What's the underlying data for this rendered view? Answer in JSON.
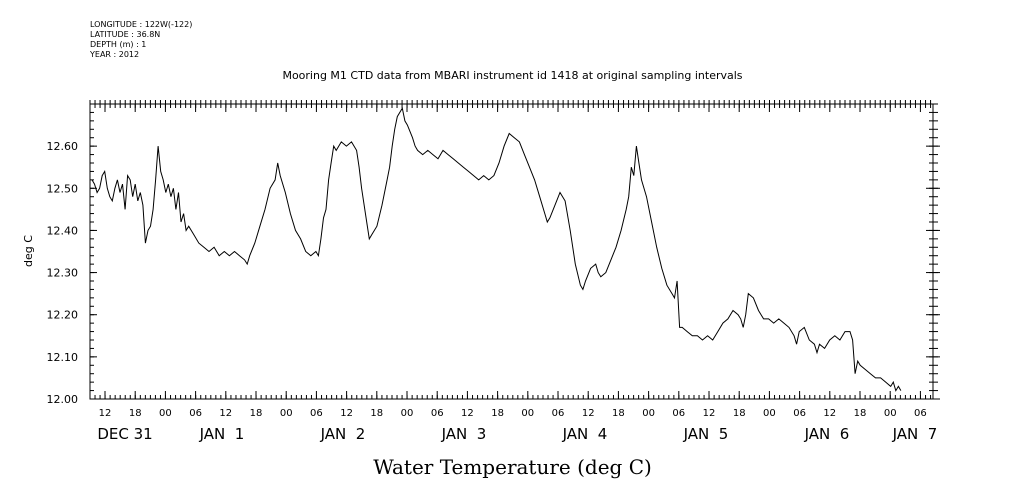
{
  "meta": {
    "longitude": "LONGITUDE : 122W(-122)",
    "latitude": "LATITUDE : 36.8N",
    "depth": "DEPTH (m) : 1",
    "year": "YEAR : 2012"
  },
  "chart_data": {
    "type": "line",
    "title": "Mooring M1 CTD data from MBARI instrument id 1418 at original sampling intervals",
    "xlabel": "Water Temperature (deg C)",
    "ylabel": "deg C",
    "ylim": [
      12.0,
      12.7
    ],
    "xlim_hours": [
      0,
      168
    ],
    "y_ticks": [
      "12.00",
      "12.10",
      "12.20",
      "12.30",
      "12.40",
      "12.50",
      "12.60"
    ],
    "x_hour_ticks": [
      "12",
      "18",
      "00",
      "06",
      "12",
      "18",
      "00",
      "06",
      "12",
      "18",
      "00",
      "06",
      "12",
      "18",
      "00",
      "06",
      "12",
      "18",
      "00",
      "06",
      "12",
      "18",
      "00",
      "06",
      "12",
      "18",
      "00",
      "06"
    ],
    "x_day_labels": [
      "DEC 31",
      "JAN  1",
      "JAN  2",
      "JAN  3",
      "JAN  4",
      "JAN  5",
      "JAN  6",
      "JAN  7"
    ],
    "series": [
      {
        "points": [
          [
            0,
            12.52
          ],
          [
            0.5,
            12.51
          ],
          [
            1,
            12.49
          ],
          [
            1.5,
            12.5
          ],
          [
            2,
            12.53
          ],
          [
            2.5,
            12.54
          ],
          [
            3,
            12.5
          ],
          [
            3.5,
            12.48
          ],
          [
            4,
            12.47
          ],
          [
            4.5,
            12.5
          ],
          [
            5,
            12.52
          ],
          [
            5.5,
            12.49
          ],
          [
            6,
            12.51
          ],
          [
            6.5,
            12.45
          ],
          [
            7,
            12.53
          ],
          [
            7.5,
            12.52
          ],
          [
            8,
            12.48
          ],
          [
            8.5,
            12.51
          ],
          [
            9,
            12.47
          ],
          [
            9.5,
            12.49
          ],
          [
            10,
            12.46
          ],
          [
            10.5,
            12.37
          ],
          [
            11,
            12.4
          ],
          [
            11.5,
            12.41
          ],
          [
            12,
            12.45
          ],
          [
            12.5,
            12.52
          ],
          [
            13,
            12.6
          ],
          [
            13.5,
            12.54
          ],
          [
            14,
            12.52
          ],
          [
            14.5,
            12.49
          ],
          [
            15,
            12.51
          ],
          [
            15.5,
            12.48
          ],
          [
            16,
            12.5
          ],
          [
            16.5,
            12.45
          ],
          [
            17,
            12.49
          ],
          [
            17.5,
            12.42
          ],
          [
            18,
            12.44
          ],
          [
            18.5,
            12.4
          ],
          [
            19,
            12.41
          ],
          [
            20,
            12.39
          ],
          [
            21,
            12.37
          ],
          [
            22,
            12.36
          ],
          [
            23,
            12.35
          ],
          [
            24,
            12.36
          ],
          [
            25,
            12.34
          ],
          [
            26,
            12.35
          ],
          [
            27,
            12.34
          ],
          [
            28,
            12.35
          ],
          [
            29,
            12.34
          ],
          [
            30,
            12.33
          ],
          [
            30.5,
            12.32
          ],
          [
            31,
            12.34
          ],
          [
            32,
            12.37
          ],
          [
            33,
            12.41
          ],
          [
            34,
            12.45
          ],
          [
            35,
            12.5
          ],
          [
            36,
            12.52
          ],
          [
            36.5,
            12.56
          ],
          [
            37,
            12.53
          ],
          [
            38,
            12.49
          ],
          [
            39,
            12.44
          ],
          [
            40,
            12.4
          ],
          [
            41,
            12.38
          ],
          [
            42,
            12.35
          ],
          [
            43,
            12.34
          ],
          [
            44,
            12.35
          ],
          [
            44.5,
            12.34
          ],
          [
            45,
            12.38
          ],
          [
            45.5,
            12.43
          ],
          [
            46,
            12.45
          ],
          [
            46.5,
            12.52
          ],
          [
            47,
            12.56
          ],
          [
            47.5,
            12.6
          ],
          [
            48,
            12.59
          ],
          [
            49,
            12.61
          ],
          [
            50,
            12.6
          ],
          [
            51,
            12.61
          ],
          [
            52,
            12.59
          ],
          [
            52.5,
            12.55
          ],
          [
            53,
            12.5
          ],
          [
            54,
            12.42
          ],
          [
            54.5,
            12.38
          ],
          [
            55,
            12.39
          ],
          [
            56,
            12.41
          ],
          [
            57,
            12.46
          ],
          [
            58,
            12.52
          ],
          [
            58.5,
            12.55
          ],
          [
            59,
            12.6
          ],
          [
            59.5,
            12.64
          ],
          [
            60,
            12.67
          ],
          [
            61,
            12.69
          ],
          [
            61.5,
            12.66
          ],
          [
            62,
            12.65
          ],
          [
            63,
            12.62
          ],
          [
            63.5,
            12.6
          ],
          [
            64,
            12.59
          ],
          [
            65,
            12.58
          ],
          [
            66,
            12.59
          ],
          [
            67,
            12.58
          ],
          [
            68,
            12.57
          ],
          [
            69,
            12.59
          ],
          [
            70,
            12.58
          ],
          [
            71,
            12.57
          ],
          [
            72,
            12.56
          ],
          [
            73,
            12.55
          ],
          [
            74,
            12.54
          ],
          [
            75,
            12.53
          ],
          [
            76,
            12.52
          ],
          [
            77,
            12.53
          ],
          [
            78,
            12.52
          ],
          [
            79,
            12.53
          ],
          [
            80,
            12.56
          ],
          [
            81,
            12.6
          ],
          [
            82,
            12.63
          ],
          [
            83,
            12.62
          ],
          [
            84,
            12.61
          ],
          [
            85,
            12.58
          ],
          [
            86,
            12.55
          ],
          [
            87,
            12.52
          ],
          [
            88,
            12.48
          ],
          [
            89,
            12.44
          ],
          [
            89.5,
            12.42
          ],
          [
            90,
            12.43
          ],
          [
            91,
            12.46
          ],
          [
            92,
            12.49
          ],
          [
            93,
            12.47
          ],
          [
            94,
            12.4
          ],
          [
            95,
            12.32
          ],
          [
            96,
            12.27
          ],
          [
            96.5,
            12.26
          ],
          [
            97,
            12.28
          ],
          [
            98,
            12.31
          ],
          [
            99,
            12.32
          ],
          [
            99.5,
            12.3
          ],
          [
            100,
            12.29
          ],
          [
            101,
            12.3
          ],
          [
            102,
            12.33
          ],
          [
            103,
            12.36
          ],
          [
            104,
            12.4
          ],
          [
            105,
            12.45
          ],
          [
            105.5,
            12.48
          ],
          [
            106,
            12.55
          ],
          [
            106.5,
            12.53
          ],
          [
            107,
            12.6
          ],
          [
            107.5,
            12.56
          ],
          [
            108,
            12.52
          ],
          [
            109,
            12.48
          ],
          [
            110,
            12.42
          ],
          [
            111,
            12.36
          ],
          [
            112,
            12.31
          ],
          [
            113,
            12.27
          ],
          [
            114,
            12.25
          ],
          [
            114.5,
            12.24
          ],
          [
            115,
            12.28
          ],
          [
            115.5,
            12.17
          ],
          [
            116,
            12.17
          ],
          [
            117,
            12.16
          ],
          [
            118,
            12.15
          ],
          [
            119,
            12.15
          ],
          [
            120,
            12.14
          ],
          [
            121,
            12.15
          ],
          [
            122,
            12.14
          ],
          [
            123,
            12.16
          ],
          [
            124,
            12.18
          ],
          [
            125,
            12.19
          ],
          [
            126,
            12.21
          ],
          [
            127,
            12.2
          ],
          [
            127.5,
            12.19
          ],
          [
            128,
            12.17
          ],
          [
            128.5,
            12.2
          ],
          [
            129,
            12.25
          ],
          [
            130,
            12.24
          ],
          [
            131,
            12.21
          ],
          [
            132,
            12.19
          ],
          [
            133,
            12.19
          ],
          [
            134,
            12.18
          ],
          [
            135,
            12.19
          ],
          [
            136,
            12.18
          ],
          [
            137,
            12.17
          ],
          [
            138,
            12.15
          ],
          [
            138.5,
            12.13
          ],
          [
            139,
            12.16
          ],
          [
            140,
            12.17
          ],
          [
            141,
            12.14
          ],
          [
            142,
            12.13
          ],
          [
            142.5,
            12.11
          ],
          [
            143,
            12.13
          ],
          [
            144,
            12.12
          ],
          [
            145,
            12.14
          ],
          [
            146,
            12.15
          ],
          [
            147,
            12.14
          ],
          [
            148,
            12.16
          ],
          [
            149,
            12.16
          ],
          [
            149.5,
            12.14
          ],
          [
            150,
            12.06
          ],
          [
            150.5,
            12.09
          ],
          [
            151,
            12.08
          ],
          [
            152,
            12.07
          ],
          [
            153,
            12.06
          ],
          [
            154,
            12.05
          ],
          [
            155,
            12.05
          ],
          [
            156,
            12.04
          ],
          [
            157,
            12.03
          ],
          [
            157.5,
            12.04
          ],
          [
            158,
            12.02
          ],
          [
            158.5,
            12.03
          ],
          [
            159,
            12.02
          ]
        ]
      }
    ]
  }
}
